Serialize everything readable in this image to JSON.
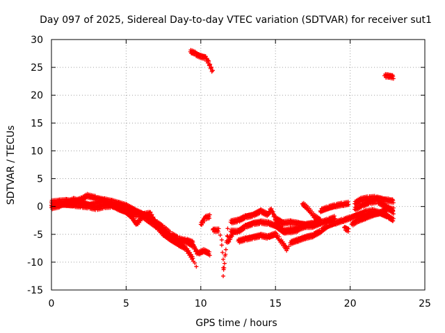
{
  "chart_data": {
    "type": "scatter",
    "title": "Day 097 of 2025, Sidereal Day-to-day VTEC variation (SDTVAR) for receiver sut1",
    "xlabel": "GPS time / hours",
    "ylabel": "SDTVAR / TECUs",
    "xlim": [
      0,
      25
    ],
    "ylim": [
      -15,
      30
    ],
    "xticks": [
      "0",
      "5",
      "10",
      "15",
      "20",
      "25"
    ],
    "yticks": [
      "-15",
      "-10",
      "-5",
      "0",
      "5",
      "10",
      "15",
      "20",
      "25",
      "30"
    ],
    "grid": true,
    "marker": "+",
    "color": "#ff0000",
    "series": [
      {
        "name": "SDTVAR sut1",
        "tracks": [
          [
            [
              0,
              0.8
            ],
            [
              0.5,
              0.9
            ],
            [
              1,
              1.0
            ],
            [
              1.5,
              0.8
            ],
            [
              2,
              1.3
            ],
            [
              2.4,
              1.9
            ],
            [
              3,
              1.5
            ],
            [
              3.5,
              1.2
            ],
            [
              4,
              0.9
            ],
            [
              4.5,
              0.5
            ],
            [
              5,
              0.1
            ],
            [
              5.5,
              -0.6
            ],
            [
              6,
              -1.2
            ],
            [
              6.5,
              -1.8
            ],
            [
              7,
              -2.8
            ],
            [
              7.5,
              -3.8
            ],
            [
              8,
              -5.0
            ],
            [
              8.5,
              -5.8
            ],
            [
              9,
              -6.2
            ],
            [
              9.5,
              -7.0
            ],
            [
              9.8,
              -8.5
            ],
            [
              10.2,
              -8.0
            ],
            [
              10.6,
              -8.5
            ]
          ],
          [
            [
              0,
              0.2
            ],
            [
              0.5,
              0.4
            ],
            [
              1,
              0.3
            ],
            [
              1.5,
              0.2
            ],
            [
              2,
              0.1
            ],
            [
              2.5,
              0
            ],
            [
              3,
              -0.3
            ],
            [
              3.5,
              0
            ],
            [
              4,
              0.1
            ],
            [
              4.5,
              -0.3
            ],
            [
              5,
              -0.8
            ],
            [
              5.5,
              -1.5
            ],
            [
              6,
              -1.5
            ],
            [
              6.5,
              -2.5
            ],
            [
              7,
              -3.5
            ],
            [
              7.5,
              -5.0
            ],
            [
              8,
              -6.0
            ],
            [
              8.5,
              -6.8
            ],
            [
              9,
              -7.5
            ],
            [
              9.5,
              -9.5
            ],
            [
              9.7,
              -10.8
            ]
          ],
          [
            [
              0,
              -0.2
            ],
            [
              0.5,
              0.1
            ],
            [
              1,
              0.6
            ],
            [
              1.5,
              1.2
            ],
            [
              2,
              0.8
            ],
            [
              2.5,
              0.3
            ],
            [
              3,
              0.5
            ],
            [
              3.5,
              0.8
            ],
            [
              4,
              0.3
            ],
            [
              4.5,
              -0.5
            ],
            [
              5,
              -1.0
            ],
            [
              5.4,
              -2.0
            ],
            [
              5.7,
              -3.2
            ],
            [
              6.2,
              -1.5
            ],
            [
              6.6,
              -1.2
            ],
            [
              7,
              -3.0
            ],
            [
              7.5,
              -4.5
            ],
            [
              8,
              -5.5
            ],
            [
              8.5,
              -6.5
            ],
            [
              9,
              -6.0
            ],
            [
              9.5,
              -6.5
            ]
          ],
          [
            [
              9.3,
              27.8
            ],
            [
              9.6,
              27.5
            ],
            [
              10,
              27.0
            ],
            [
              10.3,
              26.8
            ],
            [
              10.5,
              26.0
            ],
            [
              10.8,
              24.2
            ]
          ],
          [
            [
              10,
              -3.2
            ],
            [
              10.3,
              -2.0
            ],
            [
              10.6,
              -1.8
            ]
          ],
          [
            [
              10.8,
              -4.2
            ],
            [
              11.2,
              -4.3
            ],
            [
              11.4,
              -6.0
            ],
            [
              11.4,
              -7.0
            ],
            [
              11.5,
              -9.5
            ],
            [
              11.5,
              -12.5
            ],
            [
              11.8,
              -4.3
            ],
            [
              11.8,
              -6.5
            ],
            [
              12,
              -5.5
            ],
            [
              12.2,
              -4.5
            ]
          ],
          [
            [
              12,
              -2.8
            ],
            [
              12.5,
              -2.5
            ],
            [
              13,
              -1.8
            ],
            [
              13.5,
              -1.5
            ],
            [
              14,
              -0.8
            ],
            [
              14.5,
              -1.5
            ],
            [
              14.7,
              -0.5
            ],
            [
              15,
              -2.2
            ],
            [
              15.5,
              -3.0
            ],
            [
              16,
              -2.8
            ],
            [
              16.5,
              -3.0
            ],
            [
              17,
              -3.2
            ],
            [
              17.5,
              -3.0
            ],
            [
              18,
              -2.5
            ]
          ],
          [
            [
              12,
              -4.5
            ],
            [
              12.5,
              -4.5
            ],
            [
              13,
              -3.5
            ],
            [
              13.5,
              -3.0
            ],
            [
              14,
              -2.8
            ],
            [
              14.5,
              -3.0
            ],
            [
              15,
              -3.5
            ],
            [
              15.5,
              -4.5
            ],
            [
              16,
              -4.2
            ],
            [
              16.5,
              -4.0
            ],
            [
              17,
              -3.5
            ],
            [
              17.5,
              -3.5
            ],
            [
              18,
              -3.0
            ],
            [
              18.5,
              -2.5
            ],
            [
              19,
              -2.0
            ]
          ],
          [
            [
              12.5,
              -6.2
            ],
            [
              13,
              -5.8
            ],
            [
              13.5,
              -5.5
            ],
            [
              14,
              -5.2
            ],
            [
              14.5,
              -5.5
            ],
            [
              15,
              -5.0
            ],
            [
              15.3,
              -6.0
            ],
            [
              15.6,
              -7.0
            ],
            [
              15.8,
              -7.8
            ],
            [
              16,
              -6.5
            ],
            [
              16.5,
              -6.0
            ],
            [
              17,
              -5.5
            ],
            [
              17.5,
              -5.2
            ],
            [
              18,
              -4.5
            ],
            [
              18.5,
              -3.5
            ],
            [
              19,
              -3.0
            ],
            [
              19.5,
              -2.5
            ],
            [
              20,
              -2.0
            ],
            [
              20.5,
              -1.5
            ],
            [
              21,
              -1.0
            ],
            [
              21.5,
              -0.8
            ],
            [
              22,
              -1.2
            ],
            [
              22.5,
              -1.8
            ],
            [
              22.9,
              -2.5
            ]
          ],
          [
            [
              15,
              -2.5
            ],
            [
              15.3,
              -3.5
            ],
            [
              15.6,
              -4.5
            ],
            [
              16,
              -4.5
            ],
            [
              16.5,
              -4.2
            ]
          ],
          [
            [
              16.8,
              0.5
            ],
            [
              17.2,
              -0.5
            ],
            [
              17.6,
              -1.8
            ],
            [
              18,
              -2.5
            ]
          ],
          [
            [
              18,
              -0.8
            ],
            [
              18.5,
              -0.3
            ],
            [
              19,
              0.1
            ],
            [
              19.5,
              0.4
            ],
            [
              19.9,
              0.5
            ]
          ],
          [
            [
              19.6,
              -3.8
            ],
            [
              19.9,
              -4.2
            ]
          ],
          [
            [
              20.1,
              -3.2
            ],
            [
              20.5,
              -2.5
            ],
            [
              21,
              -2.0
            ],
            [
              21.5,
              -1.5
            ],
            [
              22,
              -1.2
            ],
            [
              22.5,
              -0.5
            ],
            [
              22.9,
              -0.6
            ]
          ],
          [
            [
              20.3,
              0.5
            ],
            [
              20.7,
              1.2
            ],
            [
              21.2,
              1.5
            ],
            [
              21.7,
              1.6
            ],
            [
              22.2,
              1.3
            ],
            [
              22.6,
              1.1
            ],
            [
              22.9,
              1.0
            ]
          ],
          [
            [
              20.3,
              -0.5
            ],
            [
              20.8,
              0.2
            ],
            [
              21.3,
              0.8
            ],
            [
              21.8,
              1.0
            ],
            [
              22.2,
              0.3
            ],
            [
              22.6,
              -0.3
            ],
            [
              22.9,
              -1.0
            ]
          ],
          [
            [
              22.3,
              23.5
            ],
            [
              22.6,
              23.5
            ],
            [
              22.9,
              23.3
            ]
          ]
        ]
      }
    ]
  }
}
